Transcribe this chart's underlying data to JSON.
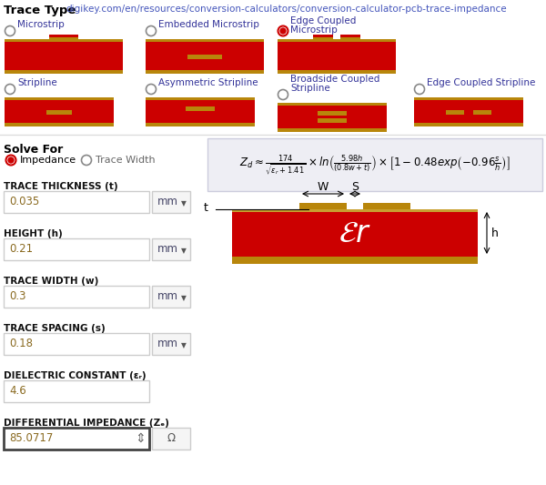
{
  "bg_color": "#ffffff",
  "red_color": "#cc0000",
  "gold_color": "#b8860b",
  "url_text": "digikey.com/en/resources/conversion-calculators/conversion-calculator-pcb-trace-impedance",
  "formula_bg": "#eeeef4",
  "input_bg": "#ffffff",
  "input_border": "#cccccc",
  "unit_bg": "#f5f5f5",
  "value_color": "#8a6a20",
  "fields": [
    {
      "label": "TRACE THICKNESS (t)",
      "value": "0.035",
      "unit": "mm",
      "has_unit": true
    },
    {
      "label": "HEIGHT (h)",
      "value": "0.21",
      "unit": "mm",
      "has_unit": true
    },
    {
      "label": "TRACE WIDTH (w)",
      "value": "0.3",
      "unit": "mm",
      "has_unit": true
    },
    {
      "label": "TRACE SPACING (s)",
      "value": "0.18",
      "unit": "mm",
      "has_unit": true
    },
    {
      "label": "DIELECTRIC CONSTANT (εᵣ)",
      "value": "4.6",
      "unit": "",
      "has_unit": false
    },
    {
      "label": "DIFFERENTIAL IMPEDANCE (Zₑ)",
      "value": "85.0717",
      "unit": "Ω",
      "has_unit": true,
      "highlighted": true
    }
  ],
  "row1_icons": [
    {
      "label": "Microstrip",
      "type": "microstrip",
      "selected": false
    },
    {
      "label": "Embedded Microstrip",
      "type": "embedded",
      "selected": false
    },
    {
      "label": "Edge Coupled\nMicrostrip",
      "type": "edge_top",
      "selected": true
    }
  ],
  "row2_icons": [
    {
      "label": "Stripline",
      "type": "strip_single",
      "selected": false
    },
    {
      "label": "Asymmetric Stripline",
      "type": "strip_asym",
      "selected": false
    },
    {
      "label": "Broadside Coupled\nStripline",
      "type": "strip_broadside",
      "selected": false
    },
    {
      "label": "Edge Coupled Stripline",
      "type": "strip_edge",
      "selected": false
    }
  ]
}
